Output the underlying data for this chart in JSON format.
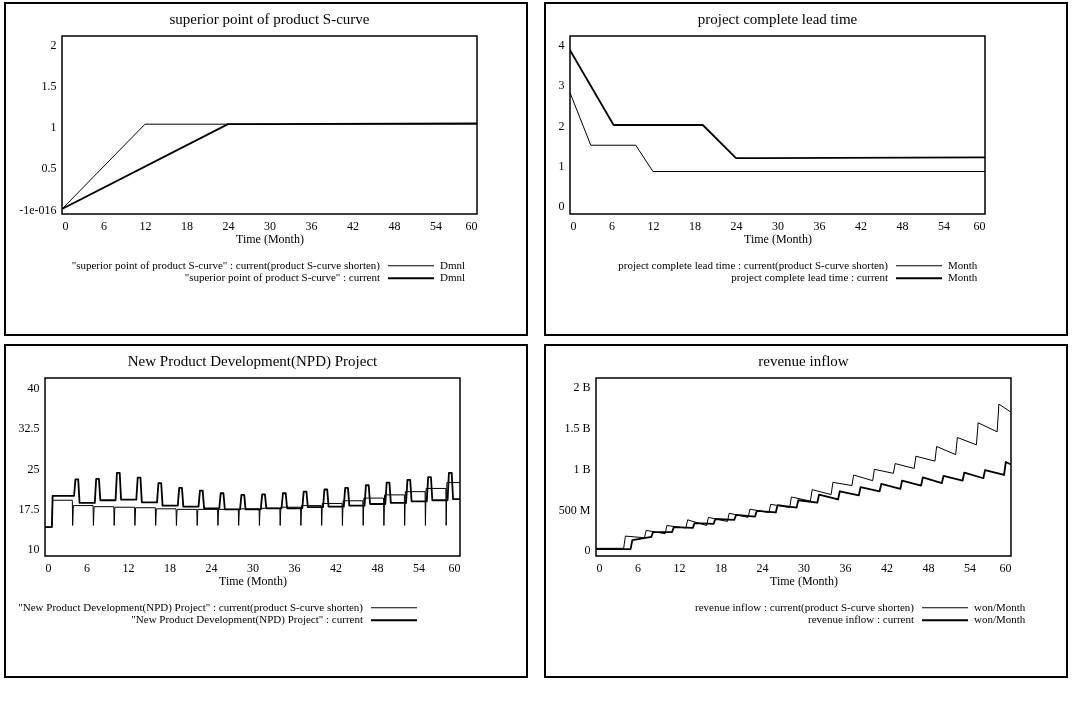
{
  "chart_data": [
    {
      "type": "line",
      "title": "superior point of product S-curve",
      "xlabel": "Time (Month)",
      "xlim": [
        0,
        60
      ],
      "xticks": [
        0,
        6,
        12,
        18,
        24,
        30,
        36,
        42,
        48,
        54,
        60
      ],
      "ylim": [
        -0.06,
        2.1
      ],
      "yticks": [
        {
          "value": 0,
          "label": "-1e-016"
        },
        0.5,
        1,
        1.5,
        2
      ],
      "legend": "bottom",
      "annotations": [
        "Dmnl",
        "Dmnl"
      ],
      "series": [
        {
          "name": "\"superior point of product S-curve\" : current(product S-curve shorten)",
          "color": "#000000",
          "x": [
            0,
            12,
            60
          ],
          "values": [
            0,
            1.03,
            1.03
          ]
        },
        {
          "name": "\"superior point of product S-curve\" : current",
          "color": "#000000",
          "x": [
            0,
            24,
            60
          ],
          "values": [
            0,
            1.03,
            1.04
          ]
        }
      ]
    },
    {
      "type": "line",
      "title": "project complete lead time",
      "xlabel": "Time (Month)",
      "xlim": [
        0,
        60
      ],
      "xticks": [
        0,
        6,
        12,
        18,
        24,
        30,
        36,
        42,
        48,
        54,
        60
      ],
      "ylim": [
        -0.2,
        4.2
      ],
      "yticks": [
        0,
        1,
        2,
        3,
        4
      ],
      "legend": "bottom",
      "annotations": [
        "Month",
        "Month"
      ],
      "series": [
        {
          "name": "project complete lead time : current(product S-curve shorten)",
          "color": "#000000",
          "x": [
            0,
            3,
            9.5,
            12,
            60
          ],
          "values": [
            2.8,
            1.5,
            1.5,
            0.85,
            0.85
          ]
        },
        {
          "name": "project complete lead time : current",
          "color": "#000000",
          "x": [
            0,
            6.3,
            19.2,
            24,
            60
          ],
          "values": [
            3.85,
            2,
            2,
            1.18,
            1.2
          ]
        }
      ]
    },
    {
      "type": "line",
      "title": "New Product Development(NPD) Project",
      "xlabel": "Time (Month)",
      "xlim": [
        0,
        60
      ],
      "xticks": [
        0,
        6,
        12,
        18,
        24,
        30,
        36,
        42,
        48,
        54,
        60
      ],
      "ylim": [
        8.6,
        41.8
      ],
      "yticks": [
        10,
        17.5,
        25,
        32.5,
        40
      ],
      "legend": "bottom",
      "series": [
        {
          "name": "\"New Product Development(NPD) Project\" : current(product S-curve shorten)",
          "color": "#000000",
          "x": [
            0,
            1,
            1.1,
            3.95,
            4,
            4.1,
            6.95,
            7,
            7.1,
            9.95,
            10,
            10.1,
            12.95,
            13,
            13.1,
            15.95,
            16,
            16.1,
            18.95,
            19,
            19.1,
            21.95,
            22,
            22.1,
            24.95,
            25,
            25.1,
            27.95,
            28,
            28.1,
            30.95,
            31,
            31.1,
            33.95,
            34,
            34.1,
            36.95,
            37,
            37.1,
            39.95,
            40,
            40.1,
            42.95,
            43,
            43.1,
            45.95,
            46,
            46.1,
            48.95,
            49,
            49.1,
            51.95,
            52,
            52.1,
            54.95,
            55,
            55.1,
            57.95,
            58,
            58.1,
            60
          ],
          "values": [
            14,
            14,
            19,
            19,
            14.3,
            18,
            18,
            14.3,
            17.8,
            17.8,
            14.3,
            17.7,
            17.7,
            14.3,
            17.6,
            17.6,
            14.3,
            17.4,
            17.4,
            14.3,
            17.3,
            17.3,
            14.3,
            17.3,
            17.3,
            14.3,
            17.3,
            17.3,
            14.3,
            17.4,
            17.4,
            14.3,
            17.5,
            17.5,
            14.3,
            17.7,
            17.7,
            14.3,
            18,
            18,
            14.3,
            18.4,
            18.4,
            14.3,
            18.9,
            18.9,
            14.3,
            19.4,
            19.4,
            14.3,
            20,
            20,
            14.3,
            20.6,
            20.6,
            14.3,
            21.2,
            21.2,
            14.3,
            22.3,
            22.3
          ]
        },
        {
          "name": "\"New Product Development(NPD) Project\" : current",
          "color": "#000000",
          "x": [
            0,
            1,
            1.1,
            4.2,
            4.4,
            4.8,
            5,
            7.2,
            7.4,
            7.8,
            8,
            10.2,
            10.4,
            10.8,
            11,
            13.2,
            13.4,
            13.8,
            14,
            16.2,
            16.4,
            16.8,
            17,
            19.2,
            19.4,
            19.8,
            20,
            22.2,
            22.4,
            22.8,
            23,
            25.2,
            25.4,
            25.8,
            26,
            28.2,
            28.4,
            28.8,
            29,
            31.2,
            31.4,
            31.8,
            32,
            34.2,
            34.4,
            34.8,
            35,
            37.2,
            37.4,
            37.8,
            38,
            40.2,
            40.4,
            40.8,
            41,
            43.2,
            43.4,
            43.8,
            44,
            46.2,
            46.4,
            46.8,
            47,
            49.2,
            49.4,
            49.8,
            50,
            52.2,
            52.4,
            52.8,
            53,
            55.2,
            55.4,
            55.8,
            56,
            58.2,
            58.4,
            58.8,
            59,
            60
          ],
          "values": [
            14,
            14,
            19.8,
            19.8,
            22.9,
            22.9,
            18.5,
            18.5,
            23,
            23,
            19,
            19,
            24.1,
            24.1,
            19.1,
            19.1,
            23.2,
            23.2,
            18.6,
            18.6,
            22.2,
            22.2,
            18,
            18,
            21.3,
            21.3,
            17.8,
            17.8,
            20.8,
            20.8,
            17.5,
            17.5,
            20.3,
            20.3,
            17.3,
            17.3,
            20,
            20,
            17.3,
            17.3,
            20.1,
            20.1,
            17.5,
            17.5,
            20.3,
            20.3,
            17.5,
            17.5,
            20.6,
            20.6,
            17.7,
            17.7,
            21,
            21,
            17.8,
            17.8,
            21.3,
            21.3,
            18,
            18,
            21.8,
            21.8,
            18.3,
            18.3,
            22.3,
            22.3,
            18.5,
            18.5,
            22.8,
            22.8,
            18.8,
            18.8,
            23.3,
            23.3,
            19,
            19,
            24.1,
            24.1,
            19.2,
            19.2
          ]
        }
      ]
    },
    {
      "type": "line",
      "title": "revenue inflow",
      "xlabel": "Time (Month)",
      "xlim": [
        0,
        60
      ],
      "xticks": [
        0,
        6,
        12,
        18,
        24,
        30,
        36,
        42,
        48,
        54,
        60
      ],
      "ylim": [
        -74000000.0,
        2110000000.0
      ],
      "yticks": [
        {
          "value": 0,
          "label": "0"
        },
        {
          "value": 500000000.0,
          "label": "500 M"
        },
        {
          "value": 1000000000.0,
          "label": "1 B"
        },
        {
          "value": 1500000000.0,
          "label": "1.5 B"
        },
        {
          "value": 2000000000.0,
          "label": "2 B"
        }
      ],
      "legend": "bottom",
      "annotations": [
        "won/Month",
        "won/Month"
      ],
      "series": [
        {
          "name": "revenue inflow : current(product S-curve shorten)",
          "color": "#000000",
          "x": [
            0,
            4,
            4.25,
            7,
            7.25,
            10,
            10.25,
            13,
            13.25,
            16,
            16.25,
            19,
            19.25,
            22,
            22.25,
            25,
            25.25,
            28,
            28.25,
            31,
            31.25,
            34,
            34.25,
            37,
            37.25,
            40,
            40.25,
            43,
            43.25,
            46,
            46.25,
            49,
            49.25,
            52,
            52.25,
            55,
            55.25,
            58,
            58.25,
            60
          ],
          "values": [
            20000000.0,
            20000000.0,
            170000000.0,
            150000000.0,
            240000000.0,
            200000000.0,
            300000000.0,
            270000000.0,
            370000000.0,
            300000000.0,
            400000000.0,
            350000000.0,
            450000000.0,
            400000000.0,
            500000000.0,
            460000000.0,
            560000000.0,
            520000000.0,
            650000000.0,
            600000000.0,
            740000000.0,
            680000000.0,
            830000000.0,
            790000000.0,
            920000000.0,
            850000000.0,
            990000000.0,
            940000000.0,
            1060000000.0,
            1000000000.0,
            1150000000.0,
            1090000000.0,
            1270000000.0,
            1170000000.0,
            1380000000.0,
            1290000000.0,
            1560000000.0,
            1450000000.0,
            1790000000.0,
            1690000000.0
          ]
        },
        {
          "name": "revenue inflow : current",
          "color": "#000000",
          "x": [
            0,
            5,
            5.25,
            8,
            8.25,
            11,
            11.25,
            14,
            14.25,
            17,
            17.25,
            20,
            20.25,
            23,
            23.25,
            26,
            26.25,
            29,
            29.25,
            32,
            32.25,
            35,
            35.25,
            38,
            38.25,
            41,
            41.25,
            44,
            44.25,
            47,
            47.25,
            50,
            50.25,
            53,
            53.25,
            56,
            56.25,
            59,
            59.25,
            60
          ],
          "values": [
            10000000.0,
            10000000.0,
            120000000.0,
            160000000.0,
            220000000.0,
            220000000.0,
            280000000.0,
            270000000.0,
            330000000.0,
            320000000.0,
            380000000.0,
            370000000.0,
            430000000.0,
            410000000.0,
            480000000.0,
            460000000.0,
            550000000.0,
            520000000.0,
            610000000.0,
            580000000.0,
            680000000.0,
            620000000.0,
            720000000.0,
            670000000.0,
            770000000.0,
            720000000.0,
            810000000.0,
            750000000.0,
            850000000.0,
            790000000.0,
            890000000.0,
            820000000.0,
            910000000.0,
            850000000.0,
            950000000.0,
            880000000.0,
            980000000.0,
            920000000.0,
            1080000000.0,
            1050000000.0
          ]
        }
      ]
    }
  ]
}
